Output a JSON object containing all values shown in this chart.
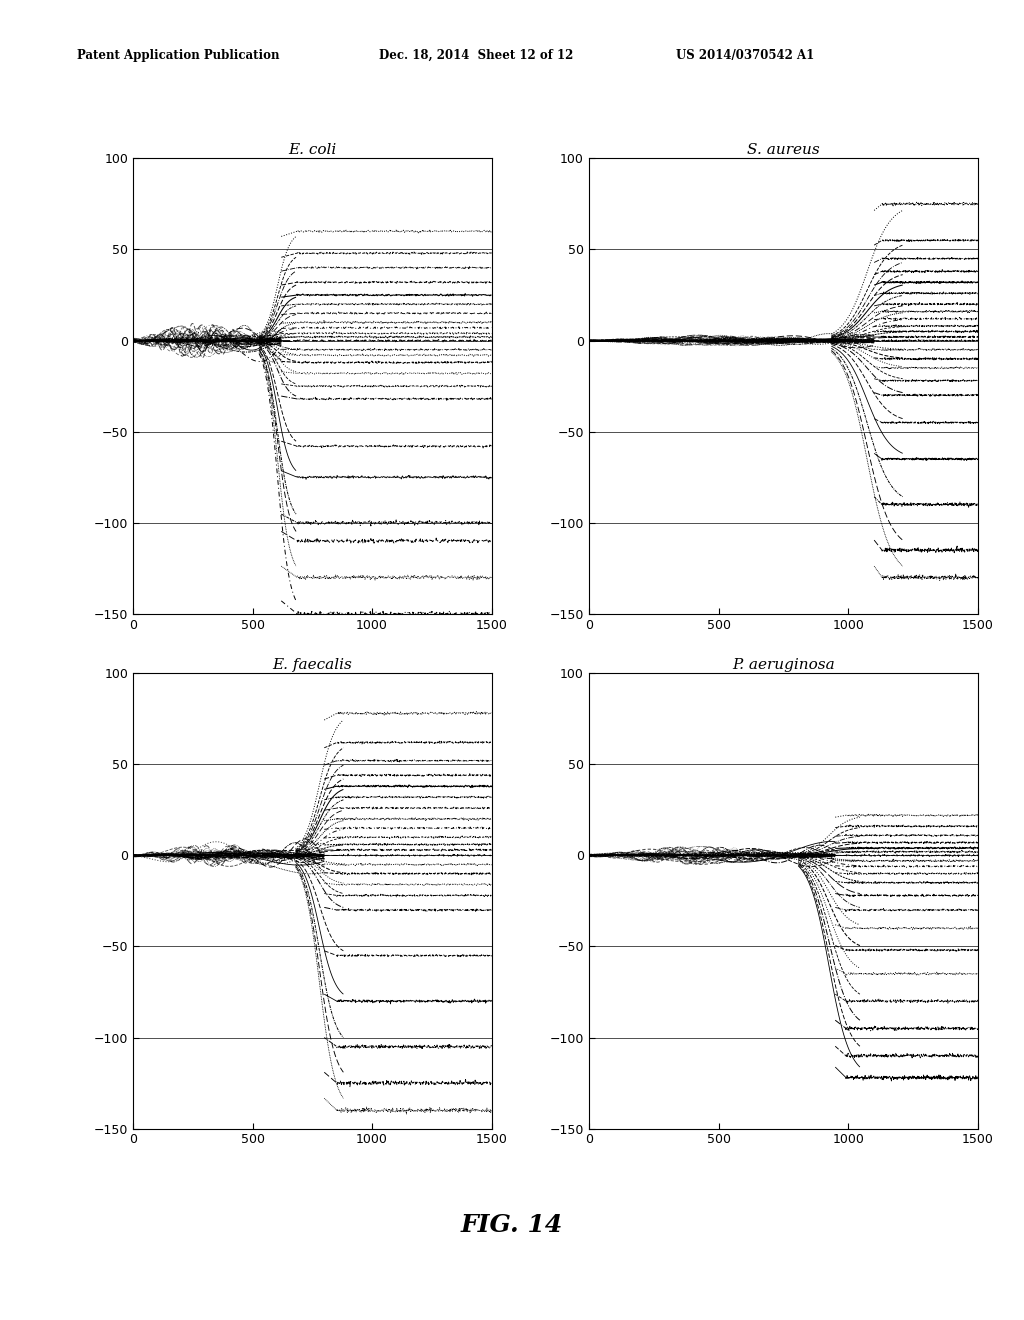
{
  "header_left": "Patent Application Publication",
  "header_center": "Dec. 18, 2014  Sheet 12 of 12",
  "header_right": "US 2014/0370542 A1",
  "figure_label": "FIG. 14",
  "subplots": [
    {
      "title": "E. coli"
    },
    {
      "title": "S. aureus"
    },
    {
      "title": "E. faecalis"
    },
    {
      "title": "P. aeruginosa"
    }
  ],
  "xlim": [
    0,
    1500
  ],
  "ylim": [
    -150,
    100
  ],
  "xticks": [
    0,
    500,
    1000,
    1500
  ],
  "yticks": [
    -150,
    -100,
    -50,
    0,
    50,
    100
  ],
  "background_color": "#ffffff",
  "ecoli": {
    "transition": 620,
    "pre_spread": 15,
    "levels": [
      60,
      48,
      40,
      32,
      25,
      20,
      15,
      10,
      7,
      4,
      2,
      0,
      -5,
      -8,
      -12,
      -18,
      -25,
      -32,
      -58,
      -75,
      -100,
      -110,
      -130,
      -150
    ]
  },
  "saureus": {
    "transition": 1100,
    "pre_spread": 5,
    "levels": [
      75,
      55,
      45,
      38,
      32,
      26,
      20,
      16,
      12,
      8,
      5,
      2,
      0,
      -5,
      -10,
      -15,
      -22,
      -30,
      -45,
      -65,
      -90,
      -115,
      -130
    ]
  },
  "efaecalis": {
    "transition": 800,
    "pre_spread": 12,
    "levels": [
      78,
      62,
      52,
      44,
      38,
      32,
      26,
      20,
      15,
      10,
      6,
      3,
      0,
      -5,
      -10,
      -16,
      -22,
      -30,
      -55,
      -80,
      -105,
      -125,
      -140
    ]
  },
  "paer": {
    "transition": 950,
    "pre_spread": 8,
    "levels": [
      22,
      16,
      11,
      7,
      4,
      2,
      0,
      -3,
      -6,
      -10,
      -15,
      -22,
      -30,
      -40,
      -52,
      -65,
      -80,
      -95,
      -110,
      -122
    ]
  }
}
